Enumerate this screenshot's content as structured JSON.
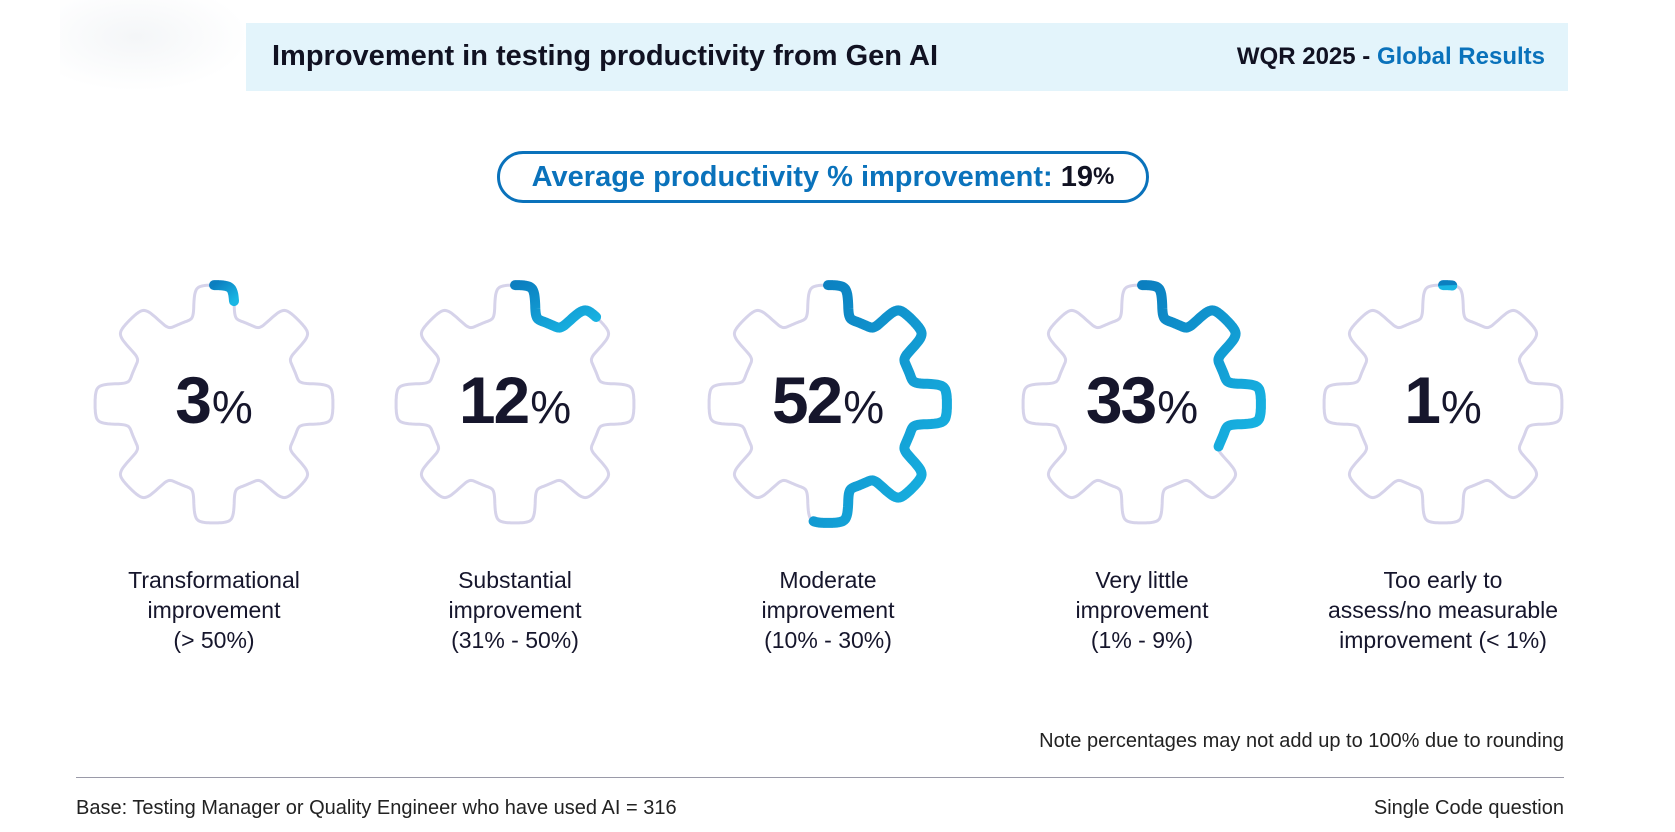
{
  "header": {
    "title": "Improvement in testing productivity from Gen AI",
    "report": "WQR 2025 - ",
    "region": "Global Results"
  },
  "average": {
    "label": "Average productivity % improvement:",
    "value": "19",
    "unit": "%"
  },
  "chart_data": {
    "type": "gauge-ring",
    "title": "Improvement in testing productivity from Gen AI",
    "unit": "%",
    "categories": [
      "Transformational improvement (> 50%)",
      "Substantial improvement (31% - 50%)",
      "Moderate improvement (10% - 30%)",
      "Very little improvement (1% - 9%)",
      "Too early to assess/no measurable improvement (< 1%)"
    ],
    "values": [
      3,
      12,
      52,
      33,
      1
    ],
    "label_lines": [
      [
        "Transformational",
        "improvement",
        "(> 50%)"
      ],
      [
        "Substantial",
        "improvement",
        "(31% - 50%)"
      ],
      [
        "Moderate",
        "improvement",
        "(10% - 30%)"
      ],
      [
        "Very little",
        "improvement",
        "(1% - 9%)"
      ],
      [
        "Too early to",
        "assess/no measurable",
        "improvement (< 1%)"
      ]
    ]
  },
  "colors": {
    "ring_track": "#d6d3ea",
    "ring_start": "#0b7fc0",
    "ring_end": "#19b6e4",
    "accent": "#0a72bb"
  },
  "note": "Note percentages may not add up to 100% due to rounding",
  "footer": {
    "base": "Base: Testing Manager or Quality Engineer who have used AI = 316",
    "question_type": "Single Code question"
  }
}
